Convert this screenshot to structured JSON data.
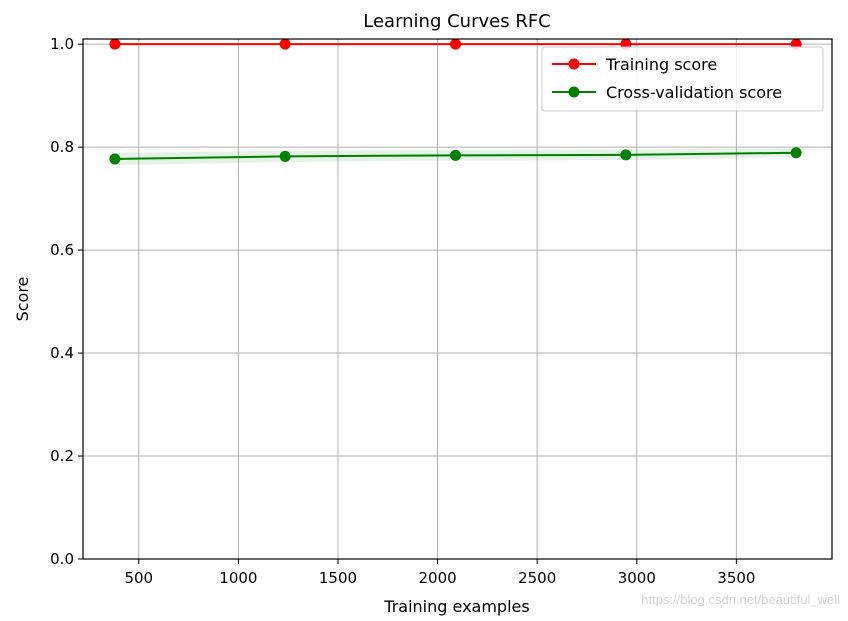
{
  "chart_data": {
    "type": "line",
    "title": "Learning Curves RFC",
    "xlabel": "Training examples",
    "ylabel": "Score",
    "xlim": [
      220,
      3980
    ],
    "ylim": [
      0.0,
      1.01
    ],
    "x_ticks": [
      500,
      1000,
      1500,
      2000,
      2500,
      3000,
      3500
    ],
    "y_ticks": [
      0.0,
      0.2,
      0.4,
      0.6,
      0.8,
      1.0
    ],
    "x_tick_labels": [
      "500",
      "1000",
      "1500",
      "2000",
      "2500",
      "3000",
      "3500"
    ],
    "y_tick_labels": [
      "0.0",
      "0.2",
      "0.4",
      "0.6",
      "0.8",
      "1.0"
    ],
    "grid": true,
    "legend_position": "top-right",
    "x": [
      380,
      1235,
      2090,
      2945,
      3800
    ],
    "series": [
      {
        "name": "Training score",
        "color": "#ff0000",
        "values": [
          1.0,
          1.0,
          1.0,
          1.0,
          1.0
        ],
        "band": [
          0.0,
          0.0,
          0.0,
          0.0,
          0.0
        ]
      },
      {
        "name": "Cross-validation score",
        "color": "#008000",
        "values": [
          0.777,
          0.782,
          0.784,
          0.785,
          0.789
        ],
        "band": [
          0.012,
          0.011,
          0.01,
          0.01,
          0.009
        ]
      }
    ]
  },
  "watermark": "https://blog.csdn.net/beautiful_well"
}
